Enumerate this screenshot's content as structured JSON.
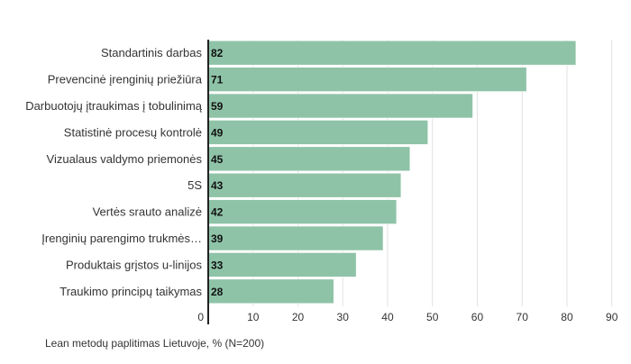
{
  "caption": "Lean metodų paplitimas Lietuvoje, % (N=200)",
  "colors": {
    "bar": "#8ec3a7",
    "bar_stroke": "#ffffff",
    "grid": "#e2e2e2",
    "axis": "#222222"
  },
  "chart_data": {
    "type": "bar",
    "orientation": "horizontal",
    "categories": [
      "Standartinis darbas",
      "Prevencinė įrenginių priežiūra",
      "Darbuotojų įtraukimas į tobulinimą",
      "Statistinė procesų kontrolė",
      "Vizualaus valdymo priemonės",
      "5S",
      "Vertės srauto analizė",
      "Įrenginių parengimo trukmės…",
      "Produktais grįstos u-linijos",
      "Traukimo principų taikymas"
    ],
    "values": [
      82,
      71,
      59,
      49,
      45,
      43,
      42,
      39,
      33,
      28
    ],
    "value_labels": [
      "82",
      "71",
      "59",
      "49",
      "45",
      "43",
      "42",
      "39",
      "33",
      "28"
    ],
    "xticks": [
      0,
      10,
      20,
      30,
      40,
      50,
      60,
      70,
      80,
      90
    ],
    "xlim": [
      0,
      90
    ],
    "grid": true,
    "title": "",
    "xlabel": "",
    "ylabel": ""
  }
}
